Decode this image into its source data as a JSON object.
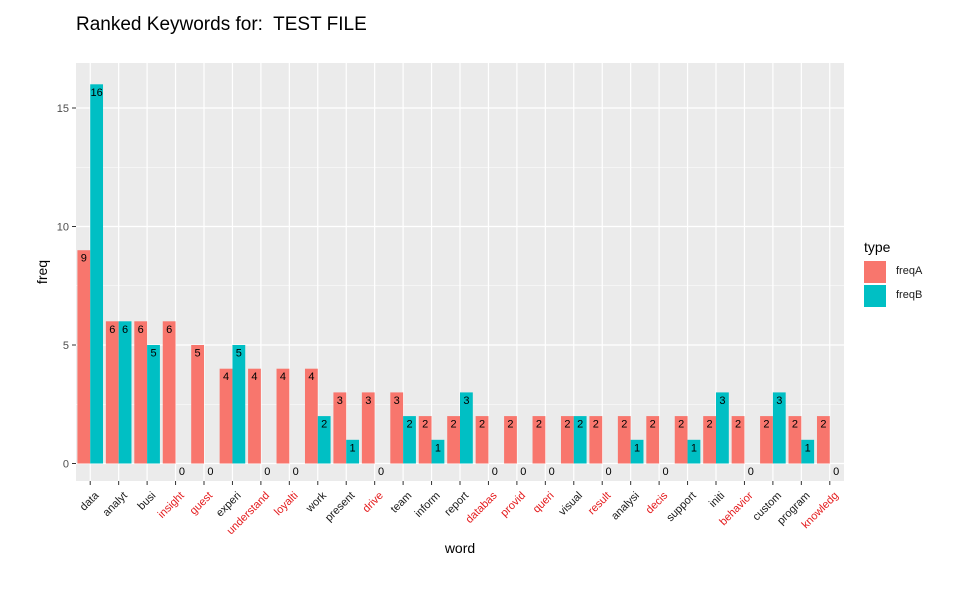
{
  "chart_data": {
    "type": "bar",
    "title": "Ranked Keywords for:  TEST FILE",
    "xlabel": "word",
    "ylabel": "freq",
    "ylim": [
      0,
      16.8
    ],
    "yticks": [
      0,
      5,
      10,
      15
    ],
    "grid": true,
    "legend": {
      "title": "type",
      "position": "right"
    },
    "categories": [
      "data",
      "analyt",
      "busi",
      "insight",
      "guest",
      "experi",
      "understand",
      "loyalti",
      "work",
      "present",
      "drive",
      "team",
      "inform",
      "report",
      "databas",
      "provid",
      "queri",
      "visual",
      "result",
      "analysi",
      "decis",
      "support",
      "initi",
      "behavior",
      "custom",
      "program",
      "knowledg"
    ],
    "highlighted_categories": [
      "insight",
      "guest",
      "understand",
      "loyalti",
      "drive",
      "databas",
      "provid",
      "queri",
      "result",
      "decis",
      "behavior",
      "knowledg"
    ],
    "series": [
      {
        "name": "freqA",
        "color": "#F8766D",
        "values": [
          9,
          6,
          6,
          6,
          5,
          4,
          4,
          4,
          4,
          3,
          3,
          3,
          2,
          2,
          2,
          2,
          2,
          2,
          2,
          2,
          2,
          2,
          2,
          2,
          2,
          2,
          2
        ]
      },
      {
        "name": "freqB",
        "color": "#00BFC4",
        "values": [
          16,
          6,
          5,
          0,
          0,
          5,
          0,
          0,
          2,
          1,
          0,
          2,
          1,
          3,
          0,
          0,
          0,
          2,
          0,
          1,
          0,
          1,
          3,
          0,
          3,
          1,
          0
        ]
      }
    ],
    "colors": {
      "panel": "#EBEBEB",
      "grid": "#FFFFFF",
      "highlight_label": "#E41A1C",
      "label": "#1A1A1A"
    }
  }
}
